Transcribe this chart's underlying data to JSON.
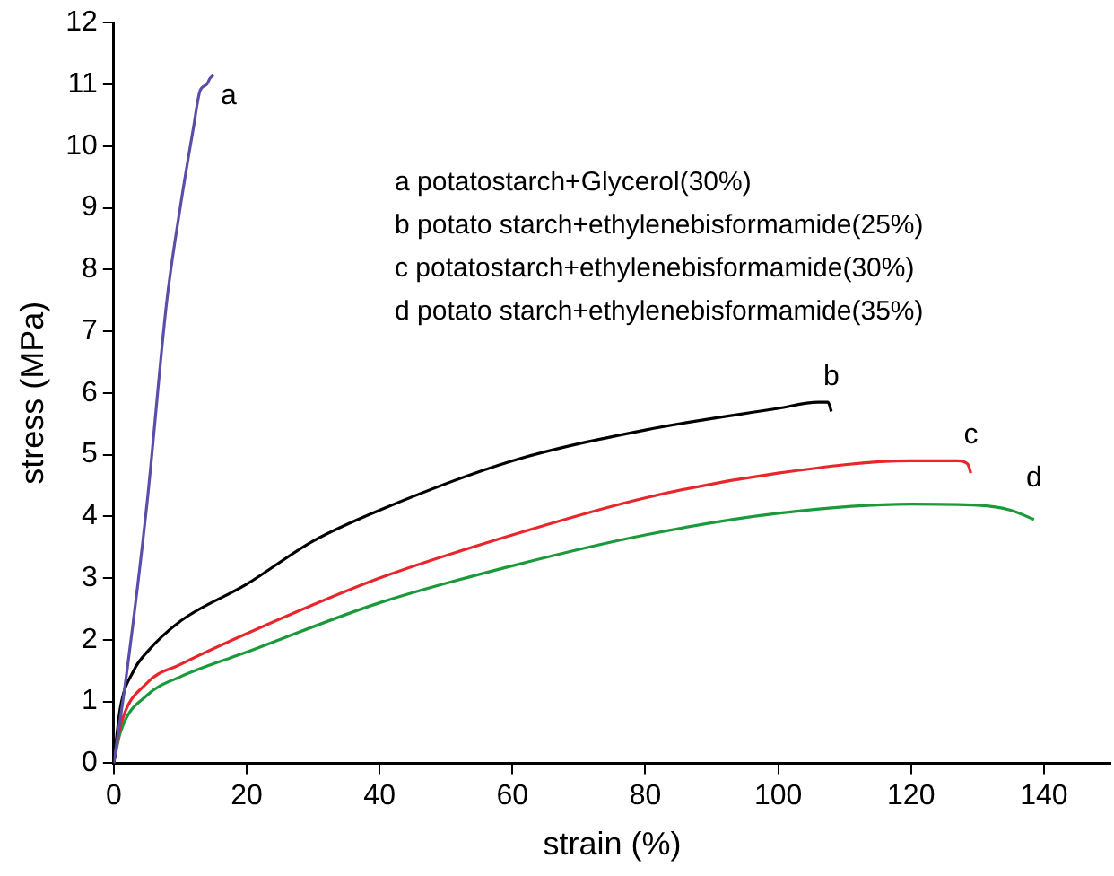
{
  "chart_data": {
    "type": "line",
    "xlabel": "strain (%)",
    "ylabel": "stress (MPa)",
    "xlim": [
      0,
      150
    ],
    "xticks": [
      0,
      20,
      40,
      60,
      80,
      100,
      120,
      140
    ],
    "ylim": [
      0,
      12
    ],
    "yticks": [
      0,
      1,
      2,
      3,
      4,
      5,
      6,
      7,
      8,
      9,
      10,
      11,
      12
    ],
    "grid": false,
    "legend": false,
    "marker": "none",
    "line_style": "solid",
    "annotations": [
      "a potatostarch+Glycerol(30%)",
      "b potato starch+ethylenebisformamide(25%)",
      "c potatostarch+ethylenebisformamide(30%)",
      "d potato starch+ethylenebisformamide(35%)"
    ],
    "series": [
      {
        "name": "a",
        "color": "#5a4fa8",
        "x": [
          0,
          2,
          5,
          8,
          10,
          12,
          13,
          14,
          14.5,
          15
        ],
        "values": [
          0,
          1.5,
          4.2,
          7.5,
          9,
          10.3,
          10.9,
          11,
          11.1,
          11.15
        ]
      },
      {
        "name": "b",
        "color": "#000000",
        "x": [
          0,
          1,
          3,
          5,
          10,
          20,
          30,
          40,
          60,
          80,
          100,
          106,
          107.5,
          108
        ],
        "values": [
          0,
          0.9,
          1.5,
          1.8,
          2.3,
          2.9,
          3.6,
          4.1,
          4.9,
          5.4,
          5.75,
          5.85,
          5.85,
          5.7
        ]
      },
      {
        "name": "c",
        "color": "#e8262b",
        "x": [
          0,
          1,
          5,
          10,
          20,
          40,
          60,
          80,
          100,
          120,
          127,
          128.5,
          129
        ],
        "values": [
          0,
          0.6,
          1.3,
          1.6,
          2.1,
          3.0,
          3.7,
          4.3,
          4.7,
          4.9,
          4.9,
          4.85,
          4.7
        ]
      },
      {
        "name": "d",
        "color": "#1a9a3a",
        "x": [
          0,
          1,
          5,
          10,
          20,
          40,
          60,
          80,
          100,
          120,
          130,
          135,
          138.5
        ],
        "values": [
          0,
          0.5,
          1.1,
          1.4,
          1.8,
          2.6,
          3.2,
          3.7,
          4.05,
          4.2,
          4.18,
          4.1,
          3.95
        ]
      }
    ]
  }
}
